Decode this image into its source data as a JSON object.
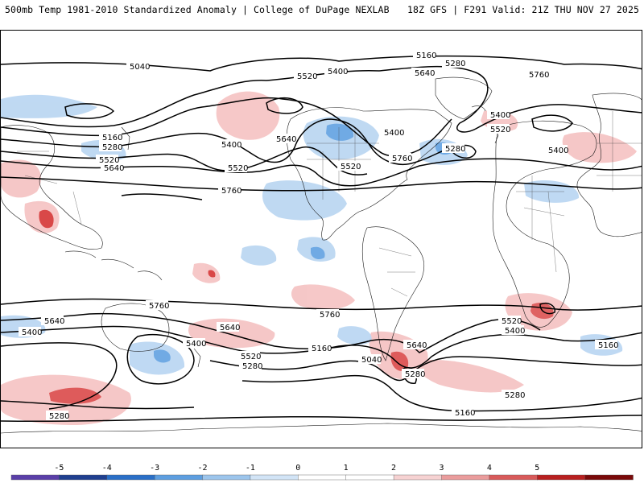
{
  "header": {
    "left_title": "500mb Temp 1981-2010 Standardized Anomaly | College of DuPage NEXLAB",
    "right_info": "18Z GFS | F291 Valid: 21Z THU NOV 27 2025"
  },
  "map": {
    "contour_labels": [
      "5160",
      "5280",
      "5400",
      "5520",
      "5640",
      "5760",
      "5040",
      "5400",
      "5280",
      "5400",
      "5520",
      "5640",
      "5400",
      "5520",
      "5760",
      "5160",
      "5280",
      "5520",
      "5640",
      "5760",
      "5400",
      "5520",
      "5640",
      "5400",
      "5760",
      "5760",
      "5640",
      "5400",
      "5520",
      "5160",
      "5280",
      "5040",
      "5640",
      "5280",
      "5520",
      "5400",
      "5160",
      "5160",
      "5280",
      "5280"
    ]
  },
  "colorbar": {
    "tick_labels": [
      "-5",
      "-4",
      "-3",
      "-2",
      "-1",
      "0",
      "1",
      "2",
      "3",
      "4",
      "5"
    ],
    "segment_colors": [
      "#5a3fa8",
      "#1f3f8f",
      "#2a6fc7",
      "#5d9ee0",
      "#9cc5ec",
      "#d2e4f6",
      "#ffffff",
      "#ffffff",
      "#f6d2d2",
      "#ea9c9c",
      "#d85a5a",
      "#b82020",
      "#7a0a0a"
    ]
  },
  "colors": {
    "cold": "#9cc5ec",
    "cold_deep": "#5d9ee0",
    "warm": "#f3b7b7",
    "warm_deep": "#d94848"
  }
}
